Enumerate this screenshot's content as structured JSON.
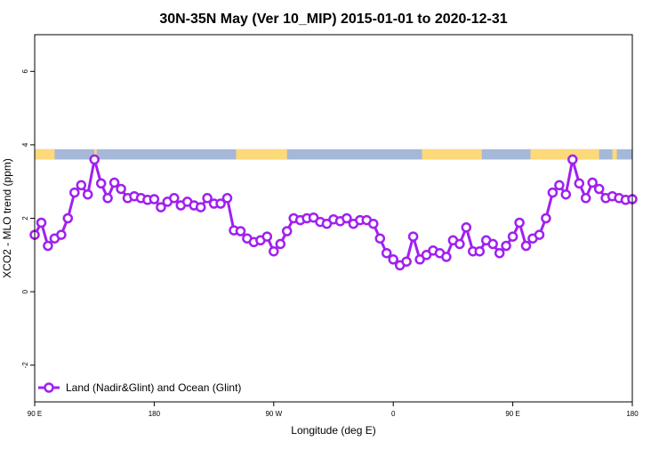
{
  "chart_data": {
    "type": "line",
    "title": "30N-35N May (Ver 10_MIP)   2015-01-01 to 2020-12-31",
    "xlabel": "Longitude (deg E)",
    "ylabel": "XCO2 - MLO trend (ppm)",
    "xlim": [
      -90,
      180
    ],
    "ylim": [
      -3,
      7
    ],
    "x_ticks": [
      {
        "value": -90,
        "label": "90 E"
      },
      {
        "value": -36,
        "label": "180"
      },
      {
        "value": 18,
        "label": "90 W"
      },
      {
        "value": 72,
        "label": "0"
      },
      {
        "value": 126,
        "label": "90 E"
      },
      {
        "value": 180,
        "label": "180"
      }
    ],
    "y_ticks": [
      {
        "value": -2,
        "label": "-2"
      },
      {
        "value": 0,
        "label": "0"
      },
      {
        "value": 2,
        "label": "2"
      },
      {
        "value": 4,
        "label": "4"
      },
      {
        "value": 6,
        "label": "6"
      }
    ],
    "grid": false,
    "legend": {
      "position": "bottom-left"
    },
    "land_ocean_strip": {
      "y_range": [
        3.6,
        3.88
      ],
      "ocean_color": "#a5b8d8",
      "land_color": "#fdd97a",
      "land_segments": [
        [
          -90,
          -81
        ],
        [
          -63,
          -62
        ],
        [
          1,
          24
        ],
        [
          85,
          112
        ],
        [
          134,
          165
        ],
        [
          171,
          173
        ]
      ]
    },
    "series": [
      {
        "name": "Land (Nadir&Glint) and Ocean (Glint)",
        "color": "#a020f0",
        "x": [
          -90,
          -87,
          -84,
          -81,
          -78,
          -75,
          -72,
          -69,
          -66,
          -63,
          -60,
          -57,
          -54,
          -51,
          -48,
          -45,
          -42,
          -39,
          -36,
          -33,
          -30,
          -27,
          -24,
          -21,
          -18,
          -15,
          -12,
          -9,
          -6,
          -3,
          0,
          3,
          6,
          9,
          12,
          15,
          18,
          21,
          24,
          27,
          30,
          33,
          36,
          39,
          42,
          45,
          48,
          51,
          54,
          57,
          60,
          63,
          66,
          69,
          72,
          75,
          78,
          81,
          84,
          87,
          90,
          93,
          96,
          99,
          102,
          105,
          108,
          111,
          114,
          117,
          120,
          123,
          126,
          129,
          132,
          135,
          138,
          141,
          144,
          147,
          150,
          153,
          156,
          159,
          162,
          165,
          168,
          171,
          174,
          177,
          180
        ],
        "values": [
          1.55,
          1.88,
          1.25,
          1.45,
          1.55,
          2.0,
          2.7,
          2.9,
          2.65,
          3.6,
          2.95,
          2.55,
          2.97,
          2.8,
          2.55,
          2.6,
          2.55,
          2.5,
          2.52,
          2.3,
          2.45,
          2.55,
          2.35,
          2.45,
          2.35,
          2.3,
          2.55,
          2.4,
          2.4,
          2.55,
          1.67,
          1.65,
          1.45,
          1.35,
          1.4,
          1.5,
          1.1,
          1.3,
          1.65,
          2.0,
          1.95,
          2.0,
          2.02,
          1.9,
          1.85,
          1.97,
          1.92,
          2.0,
          1.85,
          1.95,
          1.95,
          1.85,
          1.45,
          1.05,
          0.88,
          0.72,
          0.82,
          1.5,
          0.88,
          1.0,
          1.12,
          1.05,
          0.95,
          1.4,
          1.3,
          1.75,
          1.1,
          1.1,
          1.4,
          1.3,
          1.05,
          1.25,
          1.5,
          1.88,
          1.25,
          1.45,
          1.55,
          2.0,
          2.7,
          2.9,
          2.65,
          3.6,
          2.95,
          2.55,
          2.97,
          2.8,
          2.55,
          2.6,
          2.55,
          2.5,
          2.52
        ]
      }
    ]
  }
}
